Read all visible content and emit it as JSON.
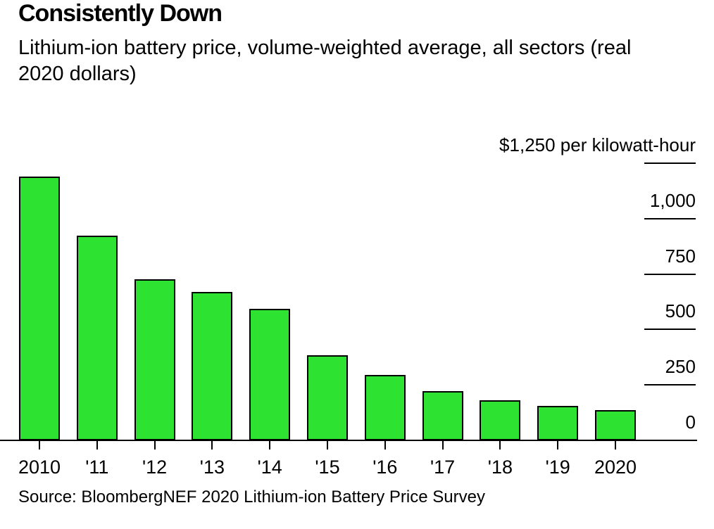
{
  "header": {
    "title": "Consistently Down",
    "subtitle": "Lithium-ion battery price, volume-weighted average, all sectors (real 2020 dollars)"
  },
  "chart_data": {
    "type": "bar",
    "title": "Consistently Down",
    "subtitle": "Lithium-ion battery price, volume-weighted average, all sectors (real 2020 dollars)",
    "categories": [
      "2010",
      "'11",
      "'12",
      "'13",
      "'14",
      "'15",
      "'16",
      "'17",
      "'18",
      "'19",
      "2020"
    ],
    "values": [
      1191,
      924,
      726,
      668,
      592,
      384,
      295,
      221,
      181,
      157,
      137
    ],
    "unit_top_label": "$1,250 per kilowatt-hour",
    "ylim": [
      0,
      1250
    ],
    "yticks": [
      0,
      250,
      500,
      750,
      1000,
      1250
    ],
    "ytick_labels": [
      "0",
      "250",
      "500",
      "750",
      "1,000",
      "$1,250 per kilowatt-hour"
    ],
    "xlabel": "",
    "ylabel": "$ per kilowatt-hour",
    "legend": "none",
    "grid": "off",
    "axis_side": "right",
    "bar_color": "#2ee231",
    "bar_border_color": "#000000",
    "axis_color": "#000000"
  },
  "source": {
    "label": "Source: BloombergNEF 2020 Lithium-ion Battery Price Survey"
  }
}
